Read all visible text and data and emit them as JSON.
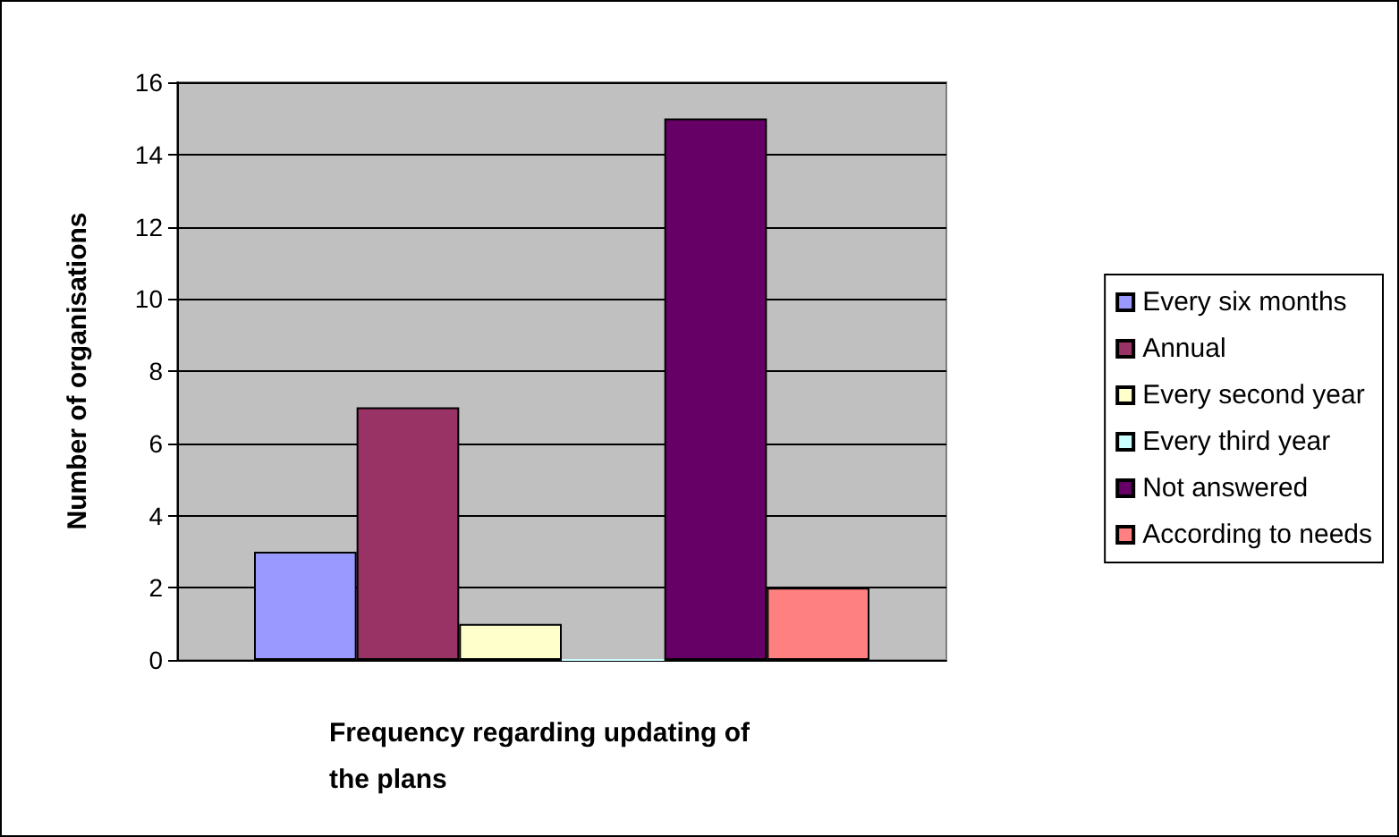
{
  "chart_data": {
    "type": "bar",
    "xlabel": "Frequency regarding updating of the plans",
    "ylabel": "Number of organisations",
    "categories": [
      null
    ],
    "series": [
      {
        "name": "Every six months",
        "color": "#9999ff",
        "values": [
          3
        ]
      },
      {
        "name": "Annual",
        "color": "#993366",
        "values": [
          7
        ]
      },
      {
        "name": "Every second year",
        "color": "#ffffcc",
        "values": [
          1
        ]
      },
      {
        "name": "Every third year",
        "color": "#ccffff",
        "values": [
          0
        ]
      },
      {
        "name": "Not answered",
        "color": "#660066",
        "values": [
          15
        ]
      },
      {
        "name": "According to needs",
        "color": "#ff8080",
        "values": [
          2
        ]
      }
    ],
    "ylim": [
      0,
      16
    ],
    "yticks": [
      0,
      2,
      4,
      6,
      8,
      10,
      12,
      14,
      16
    ],
    "grid": "y",
    "legend": "right"
  }
}
